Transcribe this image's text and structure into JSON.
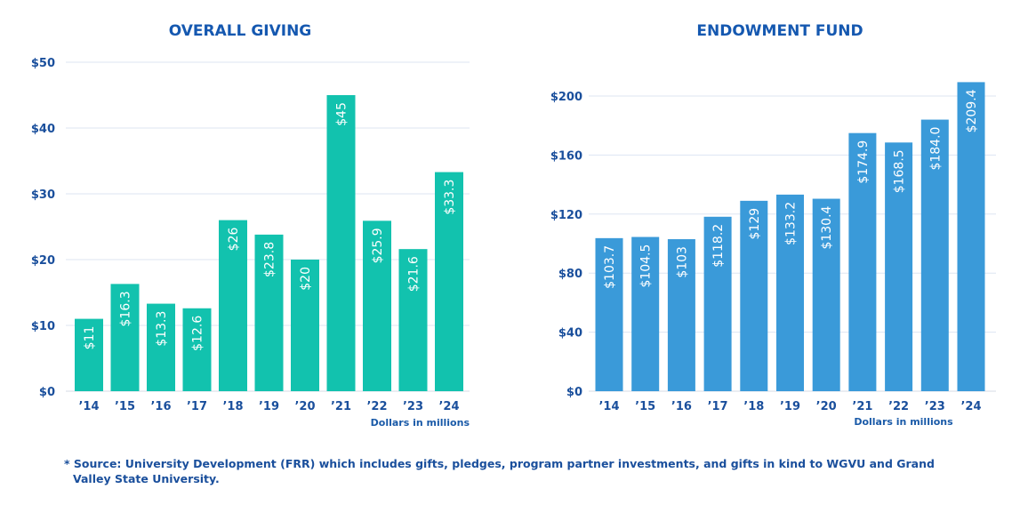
{
  "chart_data": [
    {
      "type": "bar",
      "title": "OVERALL GIVING",
      "categories": [
        "’14",
        "’15",
        "’16",
        "’17",
        "’18",
        "’19",
        "’20",
        "’21",
        "’22",
        "’23",
        "’24"
      ],
      "values": [
        11,
        16.3,
        13.3,
        12.6,
        26,
        23.8,
        20,
        45,
        25.9,
        21.6,
        33.3
      ],
      "data_labels": [
        "$11",
        "$16.3",
        "$13.3",
        "$12.6",
        "$26",
        "$23.8",
        "$20",
        "$45",
        "$25.9",
        "$21.6",
        "$33.3"
      ],
      "yticks": [
        0,
        10,
        20,
        30,
        40,
        50
      ],
      "ytick_labels": [
        "$0",
        "$10",
        "$20",
        "$30",
        "$40",
        "$50"
      ],
      "ylim": [
        0,
        50
      ],
      "unit_note": "Dollars in millions",
      "grid": true,
      "color": "#12c2ae"
    },
    {
      "type": "bar",
      "title": "ENDOWMENT FUND",
      "categories": [
        "’14",
        "’15",
        "’16",
        "’17",
        "’18",
        "’19",
        "’20",
        "’21",
        "’22",
        "’23",
        "’24"
      ],
      "values": [
        103.7,
        104.5,
        103,
        118.2,
        129,
        133.2,
        130.4,
        174.9,
        168.5,
        184.0,
        209.4
      ],
      "data_labels": [
        "$103.7",
        "$104.5",
        "$103",
        "$118.2",
        "$129",
        "$133.2",
        "$130.4",
        "$174.9",
        "$168.5",
        "$184.0",
        "$209.4"
      ],
      "yticks": [
        0,
        40,
        80,
        120,
        160,
        200
      ],
      "ytick_labels": [
        "$0",
        "$40",
        "$80",
        "$120",
        "$160",
        "$200"
      ],
      "ylim": [
        0,
        210
      ],
      "unit_note": "Dollars in millions",
      "grid": true,
      "color": "#3a9ad9"
    }
  ],
  "footnote": "* Source: University Development (FRR) which includes gifts, pledges, program partner investments, and gifts in kind to WGVU and Grand Valley State University."
}
